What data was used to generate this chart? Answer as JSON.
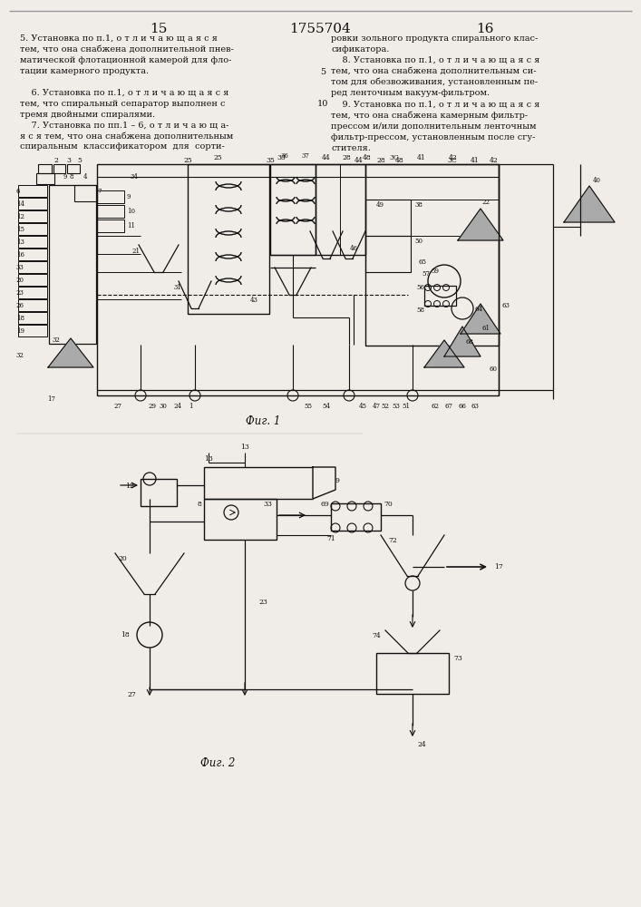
{
  "page_num_left": "15",
  "page_num_center": "1755704",
  "page_num_right": "16",
  "fig1_label": "Фиг. 1",
  "fig2_label": "Фиг. 2",
  "bg_color": "#f0ede8",
  "tc": "#111111",
  "lc": "#111111",
  "text_left": "5. Установка по п.1, о т л и ч а ю щ а я с я\nтем, что она снабжена дополнительной пнев-\nматической флотационной камерой для фло-\nтации камерного продукта.\n\n    6. Установка по п.1, о т л и ч а ю щ а я с я\nтем, что спиральный сепаратор выполнен с\nтремя двойными спиралями.\n    7. Установка по пп.1 – 6, о т л и ч а ю щ а-\nя с я тем, что она снабжена дополнительным\nспиральным  классификатором  для  сорти-",
  "text_right": "ровки зольного продукта спирального клас-\nсификатора.\n    8. Установка по п.1, о т л и ч а ю щ а я с я\nтем, что она снабжена дополнительным си-\nтом для обезвоживания, установленным пе-\nред ленточным вакуум-фильтром.\n    9. Установка по п.1, о т л и ч а ю щ а я с я\nтем, что она снабжена камерным фильтр-\nпрессом и/или дополнительным ленточным\nфильтр-прессом, установленным после сгу-\nстителя."
}
